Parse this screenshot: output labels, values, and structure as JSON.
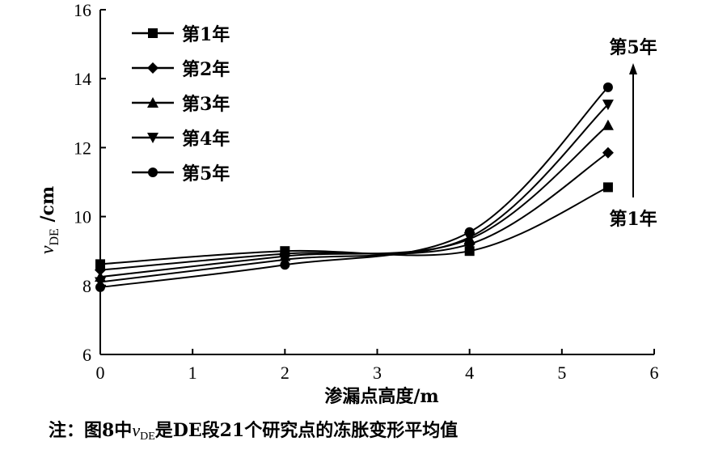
{
  "chart_data": {
    "type": "line",
    "xlabel": "渗漏点高度/m",
    "ylabel": {
      "v": "v",
      "sub": "DE",
      "unit": " /cm"
    },
    "xlim": [
      0,
      6
    ],
    "ylim": [
      6,
      16
    ],
    "xticks": [
      "0",
      "1",
      "2",
      "3",
      "4",
      "5",
      "6"
    ],
    "yticks": [
      "6",
      "8",
      "10",
      "12",
      "14",
      "16"
    ],
    "grid": false,
    "legend_position": "top-left",
    "x": [
      0,
      2,
      4,
      5.5
    ],
    "series": [
      {
        "name": "第1年",
        "marker": "square",
        "values": [
          8.62,
          9.0,
          9.0,
          10.85
        ]
      },
      {
        "name": "第2年",
        "marker": "diamond",
        "values": [
          8.45,
          8.92,
          9.2,
          11.85
        ]
      },
      {
        "name": "第3年",
        "marker": "triangle-up",
        "values": [
          8.25,
          8.85,
          9.35,
          12.65
        ]
      },
      {
        "name": "第4年",
        "marker": "triangle-down",
        "values": [
          8.1,
          8.75,
          9.4,
          13.25
        ]
      },
      {
        "name": "第5年",
        "marker": "circle",
        "values": [
          7.95,
          8.6,
          9.55,
          13.75
        ]
      }
    ],
    "annotations": {
      "top": "第5年",
      "bottom": "第1年"
    }
  },
  "note": {
    "prefix": "注：图8中",
    "v": "v",
    "sub": "DE",
    "suffix": "是DE段21个研究点的冻胀变形平均值"
  }
}
